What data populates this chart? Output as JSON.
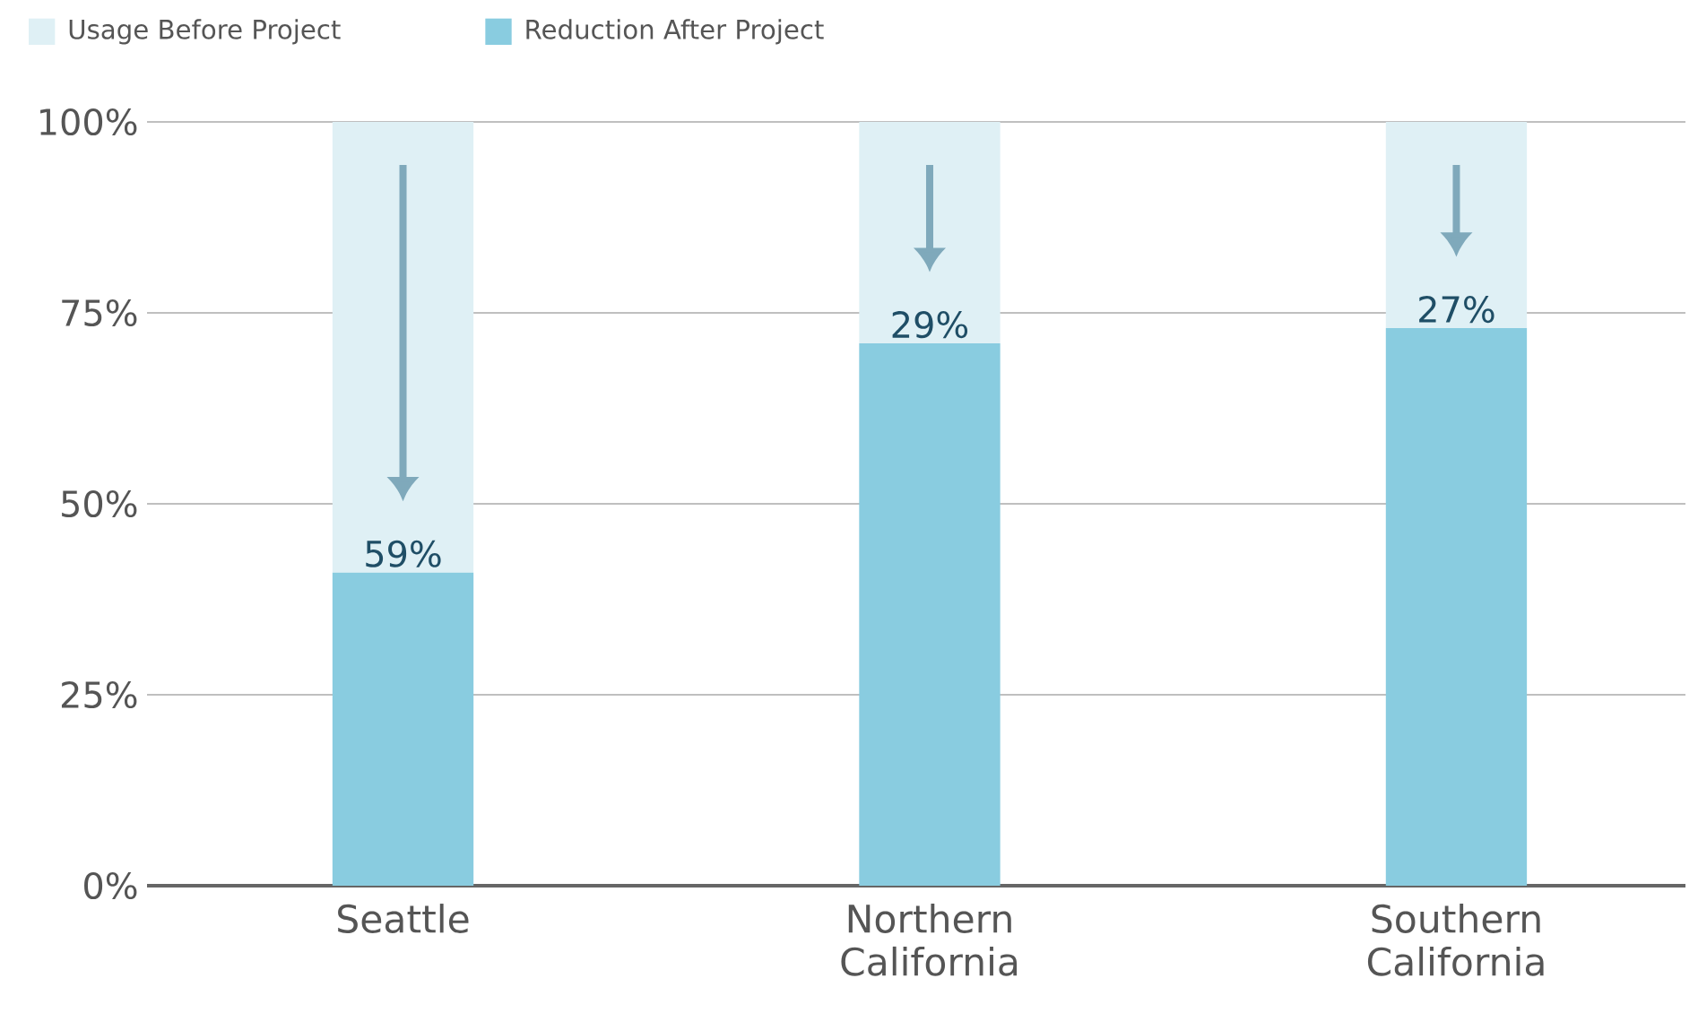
{
  "chart_data": {
    "type": "bar",
    "stacked": true,
    "categories": [
      "Seattle",
      "Northern California",
      "Southern California"
    ],
    "series": [
      {
        "name": "Reduction After Project",
        "color": "#89cce0",
        "values": [
          41,
          71,
          73
        ]
      },
      {
        "name": "Usage Before Project",
        "color": "#dff0f5",
        "values": [
          59,
          29,
          27
        ],
        "value_labels": [
          "59%",
          "29%",
          "27%"
        ]
      }
    ],
    "ylim": [
      0,
      100
    ],
    "yticks": [
      {
        "value": 0,
        "label": "0%"
      },
      {
        "value": 25,
        "label": "25%"
      },
      {
        "value": 50,
        "label": "50%"
      },
      {
        "value": 75,
        "label": "75%"
      },
      {
        "value": 100,
        "label": "100%"
      }
    ],
    "grid": "y",
    "legend": "top left"
  }
}
